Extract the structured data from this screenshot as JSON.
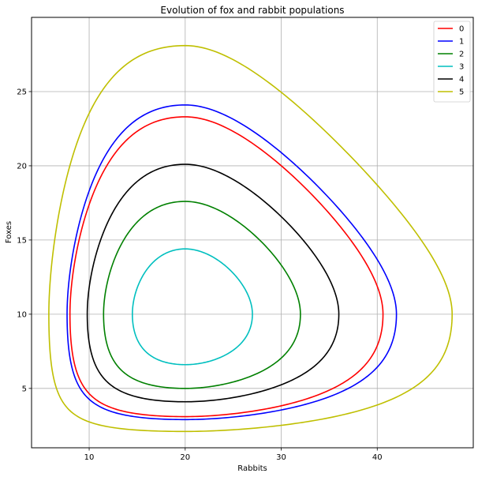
{
  "chart_data": {
    "type": "line",
    "title": "Evolution of fox and rabbit populations",
    "xlabel": "Rabbits",
    "ylabel": "Foxes",
    "xlim": [
      4,
      50
    ],
    "ylim": [
      1,
      30
    ],
    "xticks": [
      10,
      20,
      30,
      40
    ],
    "yticks": [
      5,
      10,
      15,
      20,
      25
    ],
    "grid": true,
    "legend_position": "top-right",
    "series": [
      {
        "name": "0",
        "color": "#ff0000",
        "x_range": [
          8,
          40.6
        ],
        "y_range": [
          3.1,
          23.3
        ],
        "center": [
          20,
          10
        ]
      },
      {
        "name": "1",
        "color": "#0000ff",
        "x_range": [
          7.7,
          42
        ],
        "y_range": [
          2.9,
          24.1
        ],
        "center": [
          20,
          10
        ]
      },
      {
        "name": "2",
        "color": "#008000",
        "x_range": [
          11.5,
          32
        ],
        "y_range": [
          5,
          17.6
        ],
        "center": [
          20,
          10
        ]
      },
      {
        "name": "3",
        "color": "#00bfbf",
        "x_range": [
          14.5,
          27
        ],
        "y_range": [
          6.6,
          14.4
        ],
        "center": [
          20,
          10
        ]
      },
      {
        "name": "4",
        "color": "#000000",
        "x_range": [
          9.8,
          36
        ],
        "y_range": [
          4.1,
          20.1
        ],
        "center": [
          20,
          10
        ]
      },
      {
        "name": "5",
        "color": "#bfbf00",
        "x_range": [
          5.8,
          47.8
        ],
        "y_range": [
          2.1,
          28.1
        ],
        "center": [
          20,
          10
        ]
      }
    ]
  }
}
